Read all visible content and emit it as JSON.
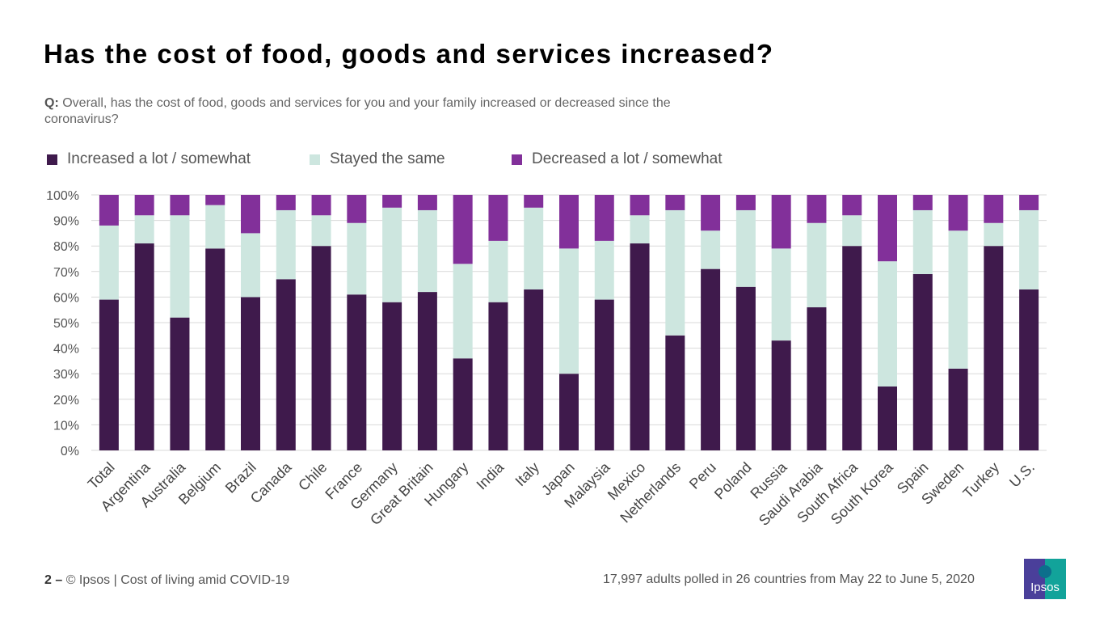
{
  "title": "Has the cost of food, goods and services increased?",
  "question": {
    "prefix": "Q:",
    "text": " Overall, has the cost of food, goods and services for you and your family increased or decreased since the coronavirus?"
  },
  "footer": {
    "page": "2 –",
    "left": " © Ipsos | Cost of living amid COVID-19",
    "right": "17,997 adults polled in 26 countries from May 22 to June 5, 2020"
  },
  "logo": {
    "text": "Ipsos",
    "colors": [
      "#4a3f9a",
      "#12a39a"
    ]
  },
  "chart_data": {
    "type": "bar",
    "stacked": true,
    "ylim": [
      0,
      100
    ],
    "grid": true,
    "legend_position": "top",
    "yticks": [
      "0%",
      "10%",
      "20%",
      "30%",
      "40%",
      "50%",
      "60%",
      "70%",
      "80%",
      "90%",
      "100%"
    ],
    "categories": [
      "Total",
      "Argentina",
      "Australia",
      "Belgium",
      "Brazil",
      "Canada",
      "Chile",
      "France",
      "Germany",
      "Great Britain",
      "Hungary",
      "India",
      "Italy",
      "Japan",
      "Malaysia",
      "Mexico",
      "Netherlands",
      "Peru",
      "Poland",
      "Russia",
      "Saudi Arabia",
      "South Africa",
      "South Korea",
      "Spain",
      "Sweden",
      "Turkey",
      "U.S."
    ],
    "series": [
      {
        "name": "Increased a lot / somewhat",
        "color": "#3f1a4c",
        "values": [
          59,
          81,
          52,
          79,
          60,
          67,
          80,
          61,
          58,
          62,
          36,
          58,
          63,
          30,
          59,
          81,
          45,
          71,
          64,
          43,
          56,
          80,
          25,
          69,
          32,
          80,
          63
        ]
      },
      {
        "name": "Stayed the same",
        "color": "#cde6df",
        "values": [
          29,
          11,
          40,
          17,
          25,
          27,
          12,
          28,
          37,
          32,
          37,
          24,
          32,
          49,
          23,
          11,
          49,
          15,
          30,
          36,
          33,
          12,
          49,
          25,
          54,
          9,
          31
        ]
      },
      {
        "name": "Decreased a lot / somewhat",
        "color": "#82309a",
        "values": [
          12,
          8,
          8,
          4,
          15,
          6,
          8,
          11,
          5,
          6,
          27,
          18,
          5,
          21,
          18,
          8,
          6,
          14,
          6,
          21,
          11,
          8,
          26,
          6,
          14,
          11,
          6
        ]
      }
    ]
  }
}
